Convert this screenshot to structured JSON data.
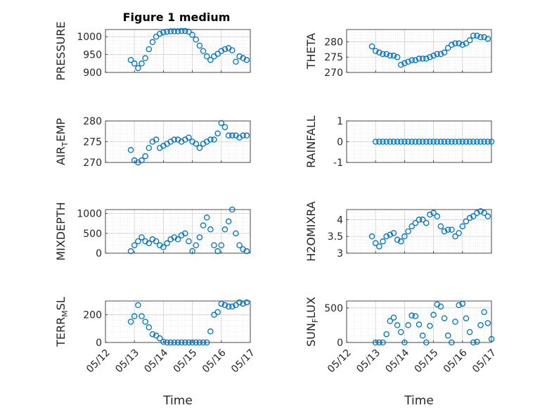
{
  "chart_data": {
    "type": "scatter",
    "title": "Figure 1 medium",
    "xlabel": "Time",
    "x_ticks": [
      "05/12",
      "05/13",
      "05/14",
      "05/15",
      "05/16",
      "05/17"
    ],
    "grid": true,
    "marker": "open-circle",
    "color": "#0072BD",
    "panels": [
      {
        "ylabel": "PRESSURE",
        "ylim": [
          900,
          1020
        ],
        "yticks": [
          "900",
          "950",
          "1000"
        ],
        "ytick_values": [
          900,
          950,
          1000
        ],
        "x": [
          "05/12 21:00",
          "05/13 00:00",
          "05/13 03:00",
          "05/13 06:00",
          "05/13 09:00",
          "05/13 12:00",
          "05/13 15:00",
          "05/13 18:00",
          "05/13 21:00",
          "05/14 00:00",
          "05/14 03:00",
          "05/14 06:00",
          "05/14 09:00",
          "05/14 12:00",
          "05/14 15:00",
          "05/14 18:00",
          "05/14 21:00",
          "05/15 00:00",
          "05/15 03:00",
          "05/15 06:00",
          "05/15 09:00",
          "05/15 12:00",
          "05/15 15:00",
          "05/15 18:00",
          "05/15 21:00",
          "05/16 00:00",
          "05/16 03:00",
          "05/16 06:00",
          "05/16 09:00",
          "05/16 12:00",
          "05/16 15:00",
          "05/16 18:00",
          "05/16 21:00"
        ],
        "y": [
          935,
          925,
          912,
          925,
          940,
          965,
          985,
          1000,
          1008,
          1012,
          1014,
          1015,
          1015,
          1015,
          1016,
          1016,
          1014,
          1005,
          992,
          975,
          960,
          945,
          935,
          945,
          952,
          960,
          965,
          968,
          962,
          930,
          945,
          940,
          935
        ]
      },
      {
        "ylabel": "THETA",
        "ylim": [
          270,
          284
        ],
        "yticks": [
          "270",
          "275",
          "280"
        ],
        "ytick_values": [
          270,
          275,
          280
        ],
        "x": [
          "05/12 21:00",
          "05/13 00:00",
          "05/13 03:00",
          "05/13 06:00",
          "05/13 09:00",
          "05/13 12:00",
          "05/13 15:00",
          "05/13 18:00",
          "05/13 21:00",
          "05/14 00:00",
          "05/14 03:00",
          "05/14 06:00",
          "05/14 09:00",
          "05/14 12:00",
          "05/14 15:00",
          "05/14 18:00",
          "05/14 21:00",
          "05/15 00:00",
          "05/15 03:00",
          "05/15 06:00",
          "05/15 09:00",
          "05/15 12:00",
          "05/15 15:00",
          "05/15 18:00",
          "05/15 21:00",
          "05/16 00:00",
          "05/16 03:00",
          "05/16 06:00",
          "05/16 09:00",
          "05/16 12:00",
          "05/16 15:00",
          "05/16 18:00",
          "05/16 21:00"
        ],
        "y": [
          278.5,
          277,
          276.5,
          276,
          276,
          275.5,
          275.5,
          275,
          272.5,
          273,
          273.5,
          274,
          274,
          274.5,
          274.5,
          274.5,
          275,
          275.5,
          276,
          276,
          276.5,
          278,
          279,
          279.5,
          279.5,
          279,
          279.5,
          280.5,
          282,
          282,
          281.5,
          281.5,
          281
        ]
      },
      {
        "ylabel": "AIR",
        "ylabel_sub": "T",
        "ylabel_rest": "EMP",
        "ylim": [
          270,
          280
        ],
        "yticks": [
          "270",
          "275",
          "280"
        ],
        "ytick_values": [
          270,
          275,
          280
        ],
        "x": [
          "05/12 21:00",
          "05/13 00:00",
          "05/13 03:00",
          "05/13 06:00",
          "05/13 09:00",
          "05/13 12:00",
          "05/13 15:00",
          "05/13 18:00",
          "05/13 21:00",
          "05/14 00:00",
          "05/14 03:00",
          "05/14 06:00",
          "05/14 09:00",
          "05/14 12:00",
          "05/14 15:00",
          "05/14 18:00",
          "05/14 21:00",
          "05/15 00:00",
          "05/15 03:00",
          "05/15 06:00",
          "05/15 09:00",
          "05/15 12:00",
          "05/15 15:00",
          "05/15 18:00",
          "05/15 21:00",
          "05/16 00:00",
          "05/16 03:00",
          "05/16 06:00",
          "05/16 09:00",
          "05/16 12:00",
          "05/16 15:00",
          "05/16 18:00",
          "05/16 21:00"
        ],
        "y": [
          273,
          270.5,
          270,
          270.5,
          271.5,
          273.5,
          275,
          275.5,
          273.5,
          274,
          274.5,
          275,
          275.5,
          275.5,
          275,
          275.5,
          276,
          275,
          274.5,
          273.5,
          274.5,
          275,
          275.5,
          275.5,
          277,
          279.5,
          278.5,
          276.5,
          276.5,
          276.5,
          276,
          276.5,
          276.5
        ]
      },
      {
        "ylabel": "RAINFALL",
        "ylim": [
          -1,
          1
        ],
        "yticks": [
          "-1",
          "0",
          "1"
        ],
        "ytick_values": [
          -1,
          0,
          1
        ],
        "x": [
          "05/13 00:00",
          "05/13 03:00",
          "05/13 06:00",
          "05/13 09:00",
          "05/13 12:00",
          "05/13 15:00",
          "05/13 18:00",
          "05/13 21:00",
          "05/14 00:00",
          "05/14 03:00",
          "05/14 06:00",
          "05/14 09:00",
          "05/14 12:00",
          "05/14 15:00",
          "05/14 18:00",
          "05/14 21:00",
          "05/15 00:00",
          "05/15 03:00",
          "05/15 06:00",
          "05/15 09:00",
          "05/15 12:00",
          "05/15 15:00",
          "05/15 18:00",
          "05/15 21:00",
          "05/16 00:00",
          "05/16 03:00",
          "05/16 06:00",
          "05/16 09:00",
          "05/16 12:00",
          "05/16 15:00",
          "05/16 18:00",
          "05/16 21:00",
          "05/17 00:00"
        ],
        "y": [
          0,
          0,
          0,
          0,
          0,
          0,
          0,
          0,
          0,
          0,
          0,
          0,
          0,
          0,
          0,
          0,
          0,
          0,
          0,
          0,
          0,
          0,
          0,
          0,
          0,
          0,
          0,
          0,
          0,
          0,
          0,
          0,
          0
        ]
      },
      {
        "ylabel": "MIXDEPTH",
        "ylim": [
          0,
          1100
        ],
        "yticks": [
          "0",
          "500",
          "1000"
        ],
        "ytick_values": [
          0,
          500,
          1000
        ],
        "x": [
          "05/12 21:00",
          "05/13 00:00",
          "05/13 03:00",
          "05/13 06:00",
          "05/13 09:00",
          "05/13 12:00",
          "05/13 15:00",
          "05/13 18:00",
          "05/13 21:00",
          "05/14 00:00",
          "05/14 03:00",
          "05/14 06:00",
          "05/14 09:00",
          "05/14 12:00",
          "05/14 15:00",
          "05/14 18:00",
          "05/14 21:00",
          "05/15 00:00",
          "05/15 03:00",
          "05/15 06:00",
          "05/15 09:00",
          "05/15 12:00",
          "05/15 15:00",
          "05/15 18:00",
          "05/15 21:00",
          "05/16 00:00",
          "05/16 03:00",
          "05/16 06:00",
          "05/16 09:00",
          "05/16 12:00",
          "05/16 15:00",
          "05/16 18:00",
          "05/16 21:00"
        ],
        "y": [
          50,
          200,
          300,
          400,
          300,
          250,
          350,
          300,
          200,
          150,
          250,
          350,
          400,
          350,
          450,
          500,
          300,
          50,
          200,
          400,
          700,
          900,
          600,
          200,
          50,
          200,
          600,
          800,
          1100,
          500,
          200,
          100,
          50
        ]
      },
      {
        "ylabel": "H2OMIXRA",
        "ylim": [
          3,
          4.3
        ],
        "yticks": [
          "3",
          "3.5",
          "4"
        ],
        "ytick_values": [
          3,
          3.5,
          4
        ],
        "x": [
          "05/12 21:00",
          "05/13 00:00",
          "05/13 03:00",
          "05/13 06:00",
          "05/13 09:00",
          "05/13 12:00",
          "05/13 15:00",
          "05/13 18:00",
          "05/13 21:00",
          "05/14 00:00",
          "05/14 03:00",
          "05/14 06:00",
          "05/14 09:00",
          "05/14 12:00",
          "05/14 15:00",
          "05/14 18:00",
          "05/14 21:00",
          "05/15 00:00",
          "05/15 03:00",
          "05/15 06:00",
          "05/15 09:00",
          "05/15 12:00",
          "05/15 15:00",
          "05/15 18:00",
          "05/15 21:00",
          "05/16 00:00",
          "05/16 03:00",
          "05/16 06:00",
          "05/16 09:00",
          "05/16 12:00",
          "05/16 15:00",
          "05/16 18:00",
          "05/16 21:00"
        ],
        "y": [
          3.5,
          3.3,
          3.2,
          3.35,
          3.5,
          3.55,
          3.6,
          3.4,
          3.35,
          3.5,
          3.65,
          3.8,
          3.9,
          4.0,
          4.0,
          3.9,
          4.15,
          4.2,
          4.1,
          3.8,
          3.65,
          3.7,
          3.7,
          3.5,
          3.6,
          3.8,
          3.95,
          4.05,
          4.1,
          4.2,
          4.25,
          4.2,
          4.1
        ]
      },
      {
        "ylabel": "TERR",
        "ylabel_sub": "M",
        "ylabel_rest": "SL",
        "ylim": [
          0,
          300
        ],
        "yticks": [
          "0",
          "200"
        ],
        "ytick_values": [
          0,
          200
        ],
        "x": [
          "05/12 21:00",
          "05/13 00:00",
          "05/13 03:00",
          "05/13 06:00",
          "05/13 09:00",
          "05/13 12:00",
          "05/13 15:00",
          "05/13 18:00",
          "05/13 21:00",
          "05/14 00:00",
          "05/14 03:00",
          "05/14 06:00",
          "05/14 09:00",
          "05/14 12:00",
          "05/14 15:00",
          "05/14 18:00",
          "05/14 21:00",
          "05/15 00:00",
          "05/15 03:00",
          "05/15 06:00",
          "05/15 09:00",
          "05/15 12:00",
          "05/15 15:00",
          "05/15 18:00",
          "05/15 21:00",
          "05/16 00:00",
          "05/16 03:00",
          "05/16 06:00",
          "05/16 09:00",
          "05/16 12:00",
          "05/16 15:00",
          "05/16 18:00",
          "05/16 21:00"
        ],
        "y": [
          150,
          190,
          270,
          190,
          150,
          110,
          60,
          50,
          30,
          5,
          0,
          0,
          0,
          0,
          0,
          0,
          0,
          0,
          0,
          0,
          0,
          0,
          80,
          200,
          220,
          280,
          270,
          260,
          260,
          270,
          290,
          280,
          290
        ]
      },
      {
        "ylabel": "SUN",
        "ylabel_sub": "F",
        "ylabel_rest": "LUX",
        "ylim": [
          0,
          600
        ],
        "yticks": [
          "0",
          "500"
        ],
        "ytick_values": [
          0,
          500
        ],
        "x": [
          "05/13 00:00",
          "05/13 03:00",
          "05/13 06:00",
          "05/13 09:00",
          "05/13 12:00",
          "05/13 15:00",
          "05/13 18:00",
          "05/13 21:00",
          "05/14 00:00",
          "05/14 03:00",
          "05/14 06:00",
          "05/14 09:00",
          "05/14 12:00",
          "05/14 15:00",
          "05/14 18:00",
          "05/14 21:00",
          "05/15 00:00",
          "05/15 03:00",
          "05/15 06:00",
          "05/15 09:00",
          "05/15 12:00",
          "05/15 15:00",
          "05/15 18:00",
          "05/15 21:00",
          "05/16 00:00",
          "05/16 03:00",
          "05/16 06:00",
          "05/16 09:00",
          "05/16 12:00",
          "05/16 15:00",
          "05/16 18:00",
          "05/16 21:00",
          "05/17 00:00"
        ],
        "y": [
          0,
          0,
          0,
          120,
          310,
          360,
          250,
          150,
          0,
          250,
          390,
          380,
          260,
          100,
          0,
          240,
          400,
          550,
          520,
          350,
          100,
          0,
          300,
          540,
          560,
          350,
          150,
          0,
          10,
          250,
          440,
          280,
          50
        ]
      }
    ]
  }
}
